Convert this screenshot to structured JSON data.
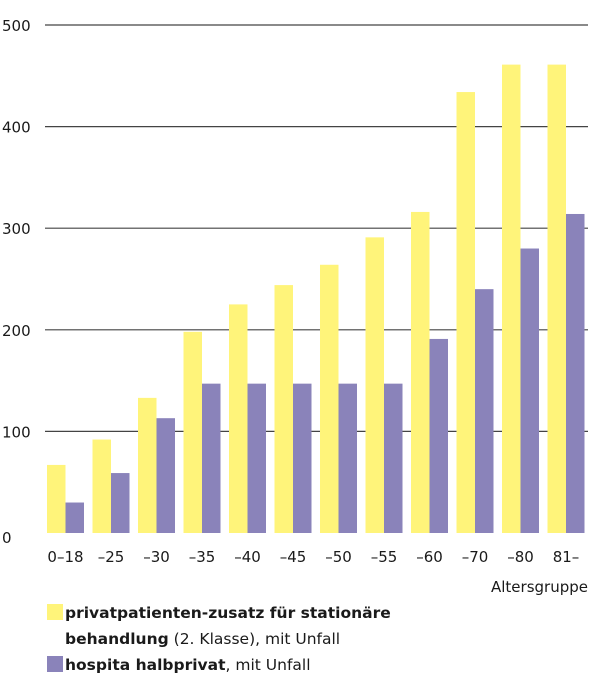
{
  "chart_data": {
    "type": "bar",
    "categories": [
      "0–18",
      "–25",
      "–30",
      "–35",
      "–40",
      "–45",
      "–50",
      "–55",
      "–60",
      "–70",
      "–80",
      "81–"
    ],
    "series": [
      {
        "name": "privatpatienten-zusatz für stationäre behandlung (2. Klasse), mit Unfall",
        "color": "#fff47a",
        "values": [
          67,
          92,
          133,
          198,
          225,
          244,
          264,
          291,
          316,
          434,
          461,
          461
        ]
      },
      {
        "name": "hospita halbprivat, mit Unfall",
        "color": "#8a83ba",
        "values": [
          30,
          59,
          113,
          147,
          147,
          147,
          147,
          147,
          191,
          240,
          280,
          314
        ]
      }
    ],
    "xlabel": "Altersgruppe",
    "ylabel": "",
    "ylim": [
      0,
      500
    ],
    "yticks": [
      0,
      100,
      200,
      300,
      400,
      500
    ],
    "grid": true
  },
  "legend": {
    "item1_bold": "privatpatienten-zusatz für stationäre",
    "item1_bold2": "behandlung",
    "item1_rest": " (2. Klasse), mit Unfall",
    "item2_bold": "hospita halbprivat",
    "item2_rest": ", mit Unfall"
  }
}
